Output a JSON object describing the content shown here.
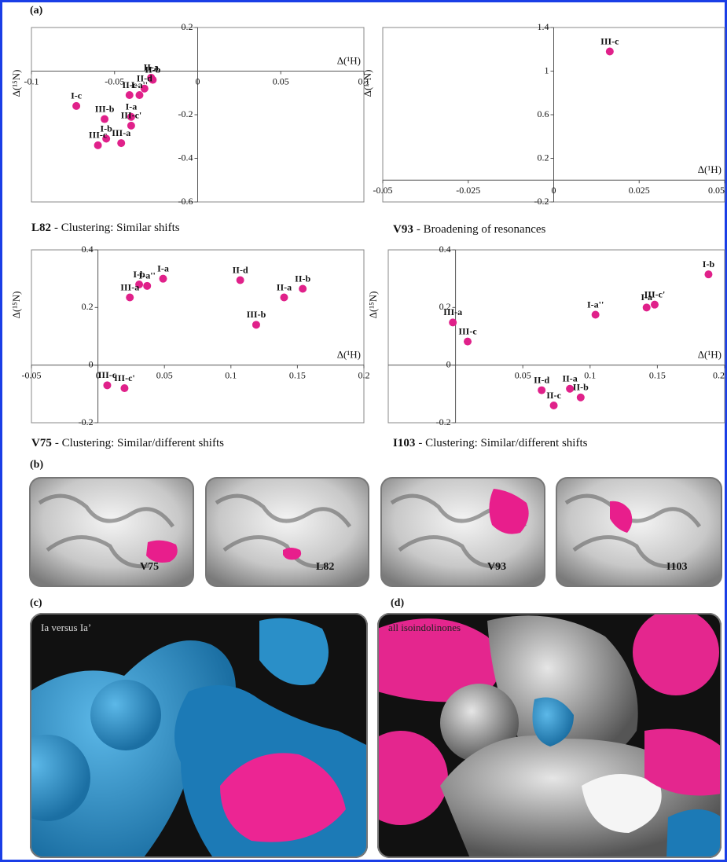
{
  "figure": {
    "panel_labels": [
      "(a)",
      "(b)",
      "(c)",
      "(d)"
    ],
    "surface_labels": [
      "V75",
      "L82",
      "V93",
      "I103"
    ],
    "map_labels": [
      "Ia versus Ia’",
      "all isoindolinones"
    ]
  },
  "chart_data": [
    {
      "type": "scatter",
      "title": "L82",
      "subtitle": "- Clustering: Similar shifts",
      "x_label": "Δ(¹H)",
      "y_label": "Δ(¹⁵N)",
      "color": "#e0218a",
      "labels": [
        "II-a",
        "II-b",
        "II-d",
        "I-a''",
        "II-c",
        "I-c",
        "III-b",
        "I-a",
        "III-c'",
        "I-b",
        "III-c",
        "III-a"
      ],
      "x": [
        -0.028,
        -0.027,
        -0.032,
        -0.035,
        -0.041,
        -0.073,
        -0.056,
        -0.04,
        -0.04,
        -0.055,
        -0.06,
        -0.046
      ],
      "values": [
        -0.03,
        -0.04,
        -0.08,
        -0.11,
        -0.11,
        -0.16,
        -0.22,
        -0.21,
        -0.25,
        -0.31,
        -0.34,
        -0.33
      ],
      "xlim": [
        -0.1,
        0.1
      ],
      "xticks": [
        -0.1,
        -0.05,
        0,
        0.05,
        0.1
      ],
      "ylim": [
        -0.6,
        0.2
      ],
      "yticks": [
        0.2,
        -0.2,
        -0.4,
        -0.6
      ]
    },
    {
      "type": "scatter",
      "title": "V93",
      "subtitle": "- Broadening of resonances",
      "x_label": "Δ(¹H)",
      "y_label": "Δ(¹⁵N)",
      "color": "#e0218a",
      "labels": [
        "III-c"
      ],
      "x": [
        0.0164
      ],
      "values": [
        1.18
      ],
      "xlim": [
        -0.05,
        0.05
      ],
      "xticks": [
        -0.05,
        -0.025,
        0,
        0.025,
        0.05
      ],
      "ylim": [
        -0.2,
        1.4
      ],
      "yticks": [
        1.4,
        1,
        0.6,
        0.2,
        -0.2
      ]
    },
    {
      "type": "scatter",
      "title": "V75",
      "subtitle": "- Clustering: Similar/different shifts",
      "x_label": "Δ(¹H)",
      "y_label": "Δ(¹⁵N)",
      "color": "#e0218a",
      "labels": [
        "I-a",
        "I-b",
        "I-a''",
        "III-a",
        "II-d",
        "II-a",
        "II-b",
        "III-b",
        "III-c",
        "III-c'"
      ],
      "x": [
        0.049,
        0.031,
        0.037,
        0.024,
        0.107,
        0.14,
        0.154,
        0.119,
        0.007,
        0.02
      ],
      "values": [
        0.3,
        0.28,
        0.275,
        0.235,
        0.295,
        0.235,
        0.265,
        0.14,
        -0.07,
        -0.08
      ],
      "xlim": [
        -0.05,
        0.2
      ],
      "xticks": [
        -0.05,
        0,
        0.05,
        0.1,
        0.15,
        0.2
      ],
      "ylim": [
        -0.2,
        0.4
      ],
      "yticks": [
        0.4,
        0.2,
        0,
        -0.2
      ]
    },
    {
      "type": "scatter",
      "title": "I103",
      "subtitle": "- Clustering: Similar/different shifts",
      "x_label": "Δ(¹H)",
      "y_label": "Δ(¹⁵N)",
      "color": "#e0218a",
      "labels": [
        "III-a",
        "III-c",
        "I-a''",
        "I-a",
        "III-c'",
        "I-b",
        "II-d",
        "II-a",
        "II-b",
        "II-c"
      ],
      "x": [
        -0.002,
        0.009,
        0.104,
        0.142,
        0.148,
        0.188,
        0.064,
        0.085,
        0.093,
        0.073
      ],
      "values": [
        0.148,
        0.082,
        0.175,
        0.2,
        0.21,
        0.315,
        -0.087,
        -0.082,
        -0.112,
        -0.14
      ],
      "xlim": [
        -0.05,
        0.2
      ],
      "xticks": [
        0.05,
        0.1,
        0.15,
        0.2
      ],
      "ylim": [
        -0.2,
        0.4
      ],
      "yticks": [
        0.4,
        0.2,
        0,
        -0.2
      ]
    }
  ]
}
